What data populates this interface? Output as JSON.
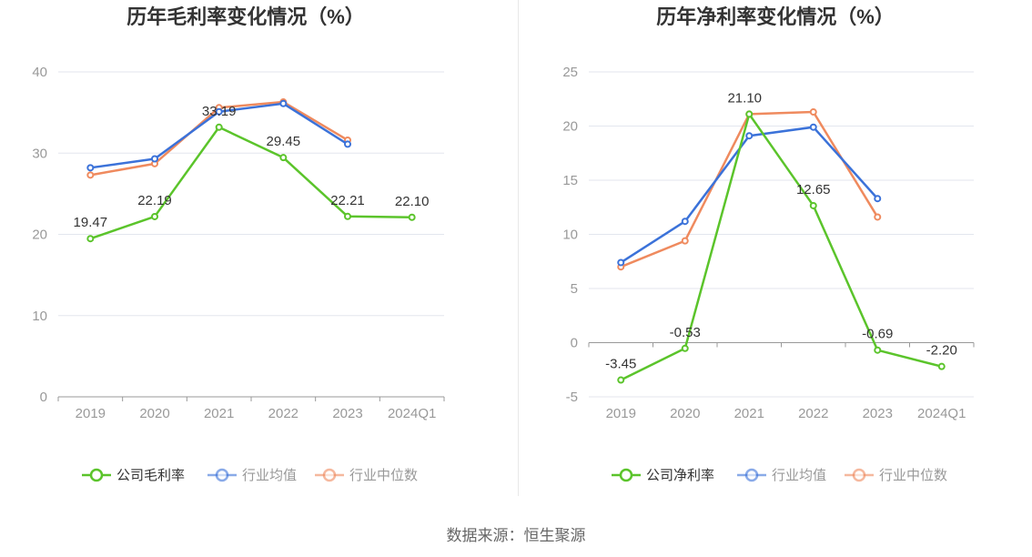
{
  "colors": {
    "company": "#5bc42b",
    "avg": "#3b72d9",
    "median": "#ef8a5e",
    "grid": "#e3e6ee",
    "axis": "#999999",
    "tick": "#999999",
    "title": "#333333"
  },
  "source": "数据来源：恒生聚源",
  "chart_data": [
    {
      "type": "line",
      "title": "历年毛利率变化情况（%）",
      "categories": [
        "2019",
        "2020",
        "2021",
        "2022",
        "2023",
        "2024Q1"
      ],
      "ylim": [
        0,
        40
      ],
      "yticks": [
        0,
        10,
        20,
        30,
        40
      ],
      "grid": true,
      "legend_position": "bottom",
      "series": [
        {
          "name": "公司毛利率",
          "key": "company",
          "values": [
            19.47,
            22.19,
            33.19,
            29.45,
            22.21,
            22.1
          ],
          "labels": [
            "19.47",
            "22.19",
            "33.19",
            "29.45",
            "22.21",
            "22.10"
          ]
        },
        {
          "name": "行业均值",
          "key": "avg",
          "values": [
            28.2,
            29.3,
            35.1,
            36.1,
            31.1,
            null
          ]
        },
        {
          "name": "行业中位数",
          "key": "median",
          "values": [
            27.3,
            28.7,
            35.6,
            36.3,
            31.6,
            null
          ]
        }
      ]
    },
    {
      "type": "line",
      "title": "历年净利率变化情况（%）",
      "categories": [
        "2019",
        "2020",
        "2021",
        "2022",
        "2023",
        "2024Q1"
      ],
      "ylim": [
        -5,
        25
      ],
      "yticks": [
        -5,
        0,
        5,
        10,
        15,
        20,
        25
      ],
      "grid": true,
      "legend_position": "bottom",
      "series": [
        {
          "name": "公司净利率",
          "key": "company",
          "values": [
            -3.45,
            -0.53,
            21.1,
            12.65,
            -0.69,
            -2.2
          ],
          "labels": [
            "-3.45",
            "-0.53",
            "21.10",
            "12.65",
            "-0.69",
            "-2.20"
          ]
        },
        {
          "name": "行业均值",
          "key": "avg",
          "values": [
            7.4,
            11.2,
            19.1,
            19.9,
            13.3,
            null
          ]
        },
        {
          "name": "行业中位数",
          "key": "median",
          "values": [
            7.0,
            9.4,
            21.1,
            21.3,
            11.6,
            null
          ]
        }
      ]
    }
  ]
}
